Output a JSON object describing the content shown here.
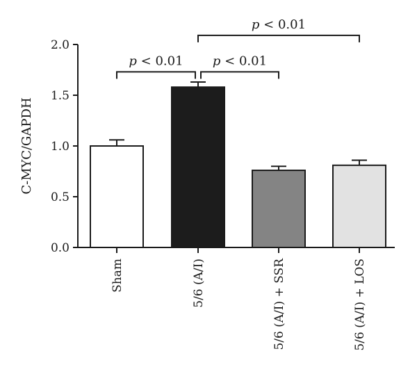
{
  "chart_data": {
    "type": "bar",
    "ylabel": "C-MYC/GAPDH",
    "ylim": [
      0,
      2.0
    ],
    "yticks": [
      "0.0",
      "0.5",
      "1.0",
      "1.5",
      "2.0"
    ],
    "categories": [
      "Sham",
      "5/6 (A/I)",
      "5/6 (A/I) + SSR",
      "5/6 (A/I) + LOS"
    ],
    "values": [
      1.0,
      1.58,
      0.76,
      0.81
    ],
    "errors": [
      0.06,
      0.05,
      0.04,
      0.05
    ],
    "bar_colors": [
      "#ffffff",
      "#1c1c1c",
      "#848484",
      "#e2e2e2"
    ],
    "bar_edge_color": "#1a1a1a",
    "significance": [
      {
        "from": 0,
        "to": 1,
        "p_symbol": "p",
        "p_rest": " < 0.01",
        "level": 1.73
      },
      {
        "from": 1,
        "to": 2,
        "p_symbol": "p",
        "p_rest": " < 0.01",
        "level": 1.73
      },
      {
        "from": 1,
        "to": 3,
        "p_symbol": "p",
        "p_rest": " < 0.01",
        "level": 2.09
      }
    ]
  }
}
